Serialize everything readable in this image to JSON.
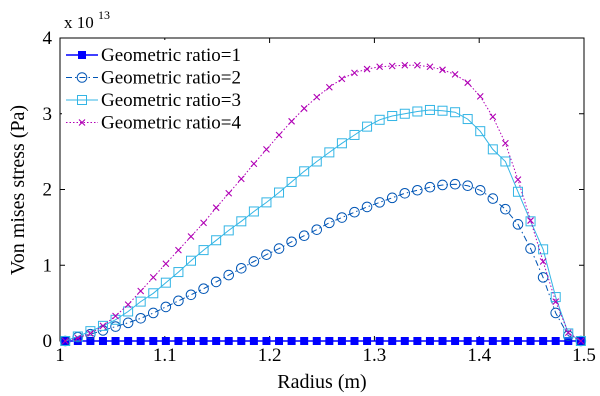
{
  "chart_data": {
    "type": "line",
    "xlabel": "Radius (m)",
    "ylabel": "Von mises stress (Pa)",
    "y_multiplier": {
      "base": "x 10",
      "exponent": "13"
    },
    "xlim": [
      1.0,
      1.5
    ],
    "ylim": [
      0,
      4
    ],
    "xticks": [
      "1",
      "1.1",
      "1.2",
      "1.3",
      "1.4",
      "1.5"
    ],
    "yticks": [
      "0",
      "1",
      "2",
      "3",
      "4"
    ],
    "grid": false,
    "legend_position": "top-left",
    "x": [
      1.005,
      1.017,
      1.029,
      1.041,
      1.053,
      1.065,
      1.077,
      1.089,
      1.101,
      1.113,
      1.125,
      1.137,
      1.149,
      1.161,
      1.173,
      1.185,
      1.197,
      1.209,
      1.221,
      1.233,
      1.245,
      1.257,
      1.269,
      1.281,
      1.293,
      1.305,
      1.317,
      1.329,
      1.341,
      1.353,
      1.365,
      1.377,
      1.389,
      1.401,
      1.413,
      1.425,
      1.437,
      1.449,
      1.461,
      1.473,
      1.485,
      1.497
    ],
    "series": [
      {
        "name": "Geometric ratio=1",
        "color": "#0000ff",
        "marker": "filled-square",
        "linestyle": "solid",
        "values": [
          0,
          0,
          0,
          0,
          0,
          0,
          0,
          0,
          0,
          0,
          0,
          0,
          0,
          0,
          0,
          0,
          0,
          0,
          0,
          0,
          0,
          0,
          0,
          0,
          0,
          0,
          0,
          0,
          0,
          0,
          0,
          0,
          0,
          0,
          0,
          0,
          0,
          0,
          0,
          0,
          0,
          0
        ]
      },
      {
        "name": "Geometric ratio=2",
        "color": "#0055b5",
        "marker": "open-circle",
        "linestyle": "dash-dot",
        "values": [
          0.0,
          0.05,
          0.09,
          0.14,
          0.19,
          0.24,
          0.3,
          0.37,
          0.45,
          0.53,
          0.61,
          0.69,
          0.78,
          0.87,
          0.96,
          1.05,
          1.14,
          1.22,
          1.31,
          1.39,
          1.47,
          1.56,
          1.63,
          1.7,
          1.77,
          1.83,
          1.89,
          1.95,
          1.99,
          2.03,
          2.06,
          2.07,
          2.05,
          1.99,
          1.88,
          1.74,
          1.54,
          1.22,
          0.84,
          0.37,
          0.07,
          0.0
        ]
      },
      {
        "name": "Geometric ratio=3",
        "color": "#33b5e5",
        "marker": "open-square",
        "linestyle": "solid",
        "values": [
          0.0,
          0.06,
          0.13,
          0.2,
          0.28,
          0.39,
          0.52,
          0.63,
          0.77,
          0.91,
          1.06,
          1.2,
          1.33,
          1.46,
          1.58,
          1.71,
          1.83,
          1.96,
          2.1,
          2.24,
          2.37,
          2.49,
          2.61,
          2.72,
          2.83,
          2.92,
          2.97,
          3.0,
          3.03,
          3.05,
          3.04,
          3.02,
          2.93,
          2.77,
          2.53,
          2.37,
          1.97,
          1.58,
          1.21,
          0.58,
          0.1,
          0.0
        ]
      },
      {
        "name": "Geometric ratio=4",
        "color": "#b000b5",
        "marker": "x",
        "linestyle": "dotted",
        "values": [
          0.0,
          0.04,
          0.1,
          0.2,
          0.33,
          0.48,
          0.66,
          0.84,
          1.02,
          1.2,
          1.38,
          1.56,
          1.76,
          1.95,
          2.14,
          2.34,
          2.53,
          2.72,
          2.9,
          3.07,
          3.22,
          3.35,
          3.46,
          3.54,
          3.59,
          3.62,
          3.63,
          3.64,
          3.64,
          3.62,
          3.58,
          3.52,
          3.41,
          3.23,
          2.96,
          2.61,
          2.13,
          1.59,
          1.05,
          0.52,
          0.11,
          0.0
        ]
      }
    ]
  }
}
